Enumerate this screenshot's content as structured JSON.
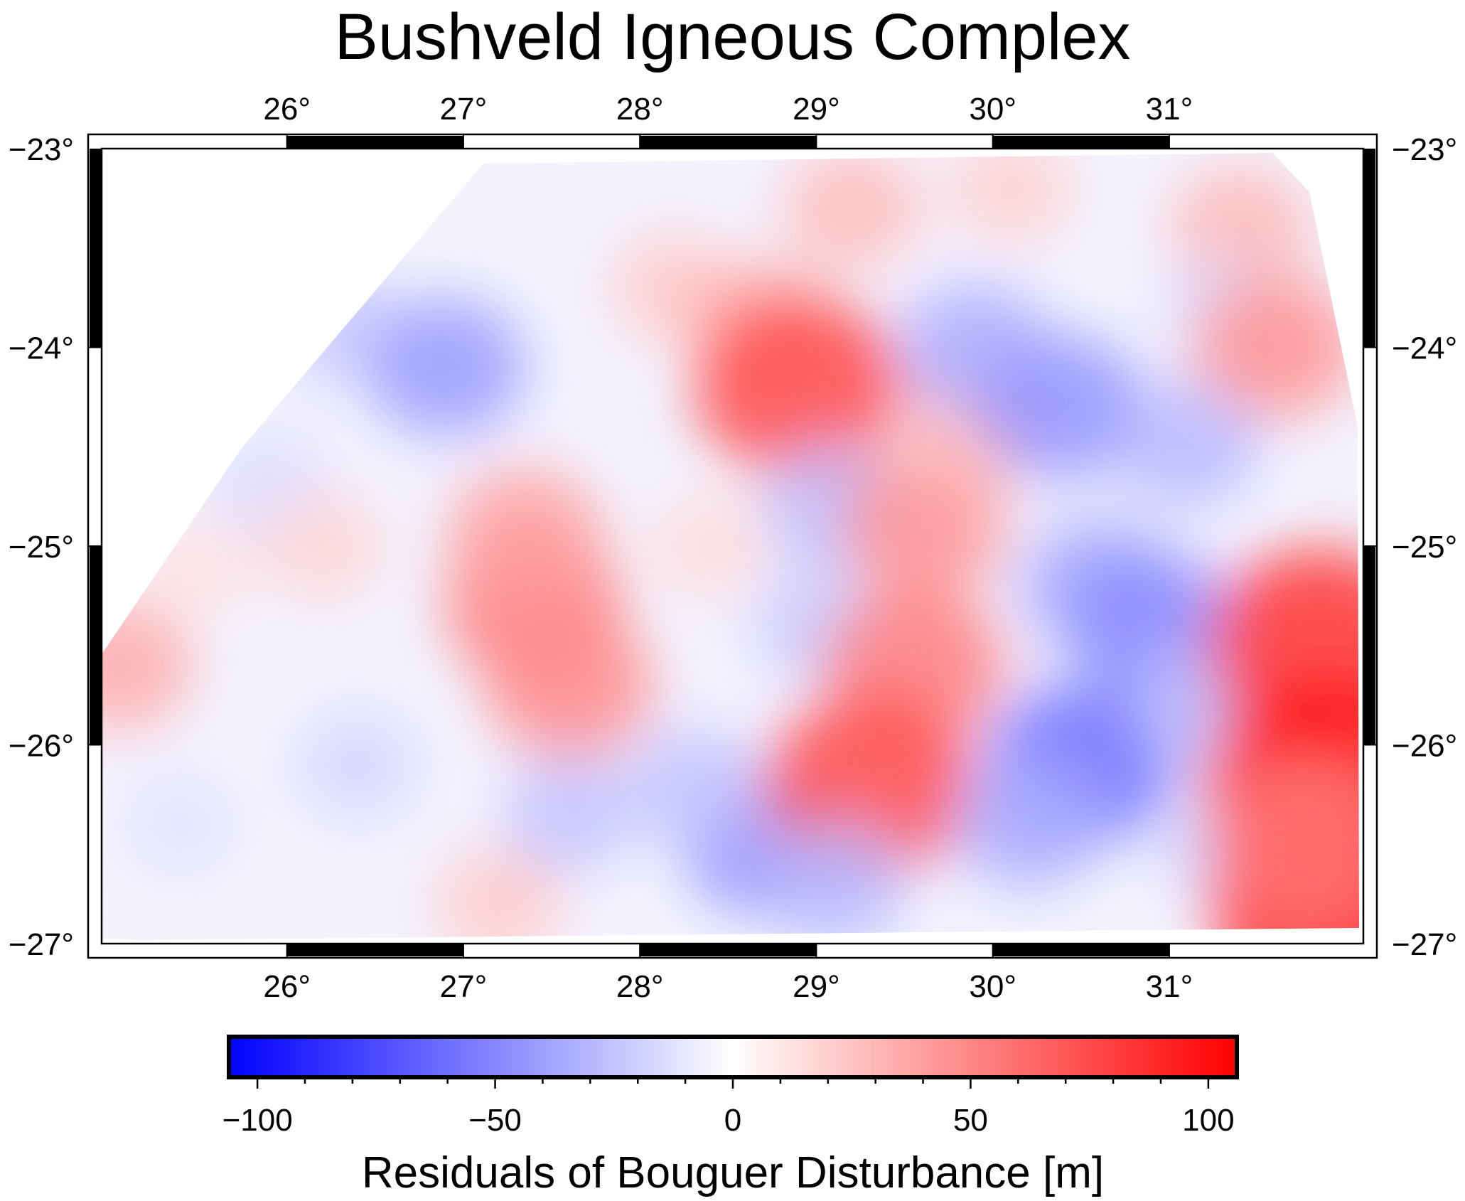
{
  "title": "Bushveld Igneous Complex",
  "map": {
    "lon_range": [
      24.95,
      32.1
    ],
    "lat_range": [
      -27.0,
      -23.0
    ],
    "lon_ticks": [
      "26°",
      "27°",
      "28°",
      "29°",
      "30°",
      "31°"
    ],
    "lat_ticks": [
      "−23°",
      "−24°",
      "−25°",
      "−26°",
      "−27°"
    ],
    "frame_style": "fancy alternating black/white",
    "anomalies": [
      {
        "lon": 25.05,
        "lat": -25.6,
        "value": 35
      },
      {
        "lon": 25.5,
        "lat": -25.1,
        "value": 12
      },
      {
        "lon": 25.4,
        "lat": -26.4,
        "value": -12
      },
      {
        "lon": 25.9,
        "lat": -24.7,
        "value": -15
      },
      {
        "lon": 26.2,
        "lat": -25.0,
        "value": 18
      },
      {
        "lon": 26.4,
        "lat": -26.1,
        "value": -18
      },
      {
        "lon": 26.3,
        "lat": -23.9,
        "value": -22
      },
      {
        "lon": 26.9,
        "lat": -24.1,
        "value": -42
      },
      {
        "lon": 27.4,
        "lat": -25.3,
        "value": 55
      },
      {
        "lon": 27.6,
        "lat": -25.7,
        "value": 48
      },
      {
        "lon": 27.35,
        "lat": -24.95,
        "value": 40
      },
      {
        "lon": 27.6,
        "lat": -26.35,
        "value": -25
      },
      {
        "lon": 27.2,
        "lat": -26.8,
        "value": 22
      },
      {
        "lon": 28.2,
        "lat": -23.7,
        "value": 22
      },
      {
        "lon": 28.7,
        "lat": -23.9,
        "value": 35
      },
      {
        "lon": 28.9,
        "lat": -24.2,
        "value": 75
      },
      {
        "lon": 28.4,
        "lat": -25.0,
        "value": 15
      },
      {
        "lon": 28.7,
        "lat": -26.5,
        "value": -45
      },
      {
        "lon": 28.3,
        "lat": -26.2,
        "value": -25
      },
      {
        "lon": 29.2,
        "lat": -23.3,
        "value": 28
      },
      {
        "lon": 29.1,
        "lat": -24.8,
        "value": -28
      },
      {
        "lon": 29.0,
        "lat": -25.4,
        "value": -22
      },
      {
        "lon": 29.6,
        "lat": -24.9,
        "value": 45
      },
      {
        "lon": 29.55,
        "lat": -25.6,
        "value": 55
      },
      {
        "lon": 29.3,
        "lat": -26.2,
        "value": 75
      },
      {
        "lon": 29.1,
        "lat": -26.7,
        "value": -30
      },
      {
        "lon": 29.9,
        "lat": -24.4,
        "value": 30
      },
      {
        "lon": 30.1,
        "lat": -23.2,
        "value": 20
      },
      {
        "lon": 29.9,
        "lat": -24.0,
        "value": -35
      },
      {
        "lon": 30.4,
        "lat": -24.3,
        "value": -45
      },
      {
        "lon": 30.6,
        "lat": -25.2,
        "value": -38
      },
      {
        "lon": 30.9,
        "lat": -25.4,
        "value": -48
      },
      {
        "lon": 30.5,
        "lat": -26.1,
        "value": -60
      },
      {
        "lon": 30.2,
        "lat": -26.4,
        "value": -35
      },
      {
        "lon": 31.4,
        "lat": -23.4,
        "value": 30
      },
      {
        "lon": 31.3,
        "lat": -23.8,
        "value": -15
      },
      {
        "lon": 31.6,
        "lat": -24.0,
        "value": 45
      },
      {
        "lon": 31.1,
        "lat": -24.5,
        "value": -30
      },
      {
        "lon": 31.2,
        "lat": -25.8,
        "value": -28
      },
      {
        "lon": 31.3,
        "lat": -26.5,
        "value": -20
      },
      {
        "lon": 31.85,
        "lat": -25.5,
        "value": 85
      },
      {
        "lon": 31.9,
        "lat": -26.2,
        "value": 100
      },
      {
        "lon": 31.9,
        "lat": -26.8,
        "value": 95
      },
      {
        "lon": 31.75,
        "lat": -26.5,
        "value": 55
      }
    ]
  },
  "colorbar": {
    "ticks": [
      "−100",
      "−50",
      "0",
      "50",
      "100"
    ],
    "min": -106,
    "max": 106,
    "colors": {
      "negative": "#0000ff",
      "zero": "#ffffff",
      "positive": "#ff0000"
    },
    "title": "Residuals of Bouguer Disturbance [m]"
  }
}
